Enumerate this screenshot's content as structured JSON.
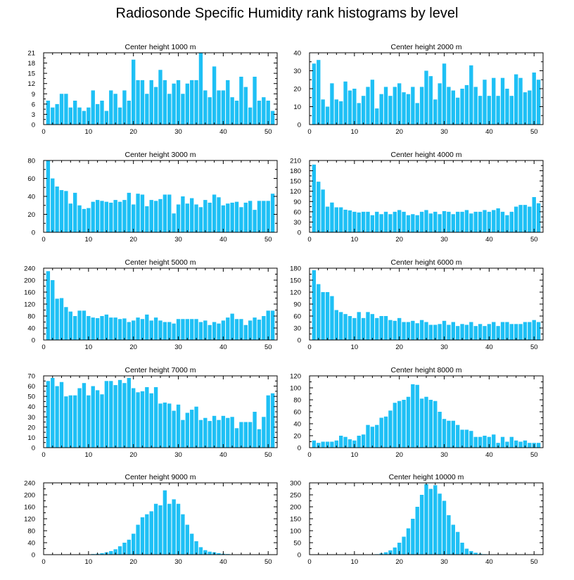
{
  "title": "Radiosonde Specific Humidity rank histograms by level",
  "colors": {
    "bar": "#1ec0f5",
    "axis": "#000000",
    "background": "#ffffff"
  },
  "chart_data": [
    {
      "type": "bar",
      "title": "Center height 1000 m",
      "xlim": [
        0,
        52
      ],
      "xticks": [
        0,
        10,
        20,
        30,
        40,
        50
      ],
      "ylim": [
        0,
        21
      ],
      "yticks": [
        0,
        3,
        6,
        9,
        12,
        15,
        18,
        21
      ],
      "values": [
        7,
        5,
        6,
        9,
        9,
        5,
        7,
        5,
        4,
        5,
        10,
        6,
        7,
        4,
        10,
        9,
        5,
        10,
        7,
        19,
        13,
        13,
        9,
        13,
        11,
        16,
        13,
        9,
        12,
        13,
        9,
        12,
        13,
        13,
        21,
        10,
        8,
        17,
        10,
        10,
        13,
        8,
        7,
        14,
        11,
        5,
        14,
        7,
        8,
        7,
        4
      ]
    },
    {
      "type": "bar",
      "title": "Center height 2000 m",
      "xlim": [
        0,
        52
      ],
      "xticks": [
        0,
        10,
        20,
        30,
        40,
        50
      ],
      "ylim": [
        0,
        40
      ],
      "yticks": [
        0,
        10,
        20,
        30,
        40
      ],
      "values": [
        34,
        36,
        14,
        10,
        23,
        14,
        13,
        24,
        19,
        20,
        12,
        16,
        21,
        25,
        9,
        17,
        21,
        16,
        21,
        23,
        18,
        17,
        21,
        12,
        21,
        30,
        27,
        14,
        23,
        34,
        21,
        19,
        15,
        20,
        22,
        33,
        21,
        16,
        25,
        16,
        26,
        16,
        26,
        20,
        16,
        28,
        26,
        18,
        19,
        29,
        25
      ]
    },
    {
      "type": "bar",
      "title": "Center height 3000 m",
      "xlim": [
        0,
        52
      ],
      "xticks": [
        0,
        10,
        20,
        30,
        40,
        50
      ],
      "ylim": [
        0,
        80
      ],
      "yticks": [
        0,
        20,
        40,
        60,
        80
      ],
      "values": [
        80,
        60,
        51,
        47,
        46,
        32,
        44,
        30,
        26,
        27,
        34,
        36,
        35,
        34,
        33,
        36,
        34,
        36,
        44,
        31,
        43,
        42,
        29,
        36,
        35,
        37,
        42,
        42,
        21,
        31,
        40,
        32,
        38,
        31,
        28,
        36,
        33,
        42,
        39,
        30,
        32,
        33,
        34,
        28,
        33,
        35,
        25,
        35,
        35,
        35,
        43
      ]
    },
    {
      "type": "bar",
      "title": "Center height 4000 m",
      "xlim": [
        0,
        52
      ],
      "xticks": [
        0,
        10,
        20,
        30,
        40,
        50
      ],
      "ylim": [
        0,
        210
      ],
      "yticks": [
        0,
        30,
        60,
        90,
        120,
        150,
        180,
        210
      ],
      "values": [
        198,
        148,
        125,
        75,
        87,
        73,
        73,
        66,
        64,
        60,
        58,
        60,
        60,
        50,
        60,
        53,
        60,
        53,
        60,
        65,
        60,
        50,
        53,
        50,
        60,
        65,
        55,
        60,
        53,
        62,
        60,
        53,
        60,
        60,
        65,
        55,
        60,
        60,
        65,
        60,
        65,
        70,
        60,
        50,
        60,
        75,
        80,
        80,
        75,
        103,
        85
      ]
    },
    {
      "type": "bar",
      "title": "Center height 5000 m",
      "xlim": [
        0,
        52
      ],
      "xticks": [
        0,
        10,
        20,
        30,
        40,
        50
      ],
      "ylim": [
        0,
        240
      ],
      "yticks": [
        0,
        40,
        80,
        120,
        160,
        200,
        240
      ],
      "values": [
        230,
        200,
        138,
        140,
        110,
        95,
        80,
        98,
        98,
        80,
        75,
        73,
        80,
        85,
        75,
        75,
        70,
        72,
        60,
        65,
        75,
        70,
        85,
        65,
        75,
        65,
        60,
        60,
        55,
        70,
        70,
        70,
        70,
        70,
        60,
        65,
        50,
        60,
        55,
        65,
        75,
        88,
        70,
        70,
        50,
        65,
        75,
        68,
        80,
        98,
        98
      ]
    },
    {
      "type": "bar",
      "title": "Center height 6000 m",
      "xlim": [
        0,
        52
      ],
      "xticks": [
        0,
        10,
        20,
        30,
        40,
        50
      ],
      "ylim": [
        0,
        180
      ],
      "yticks": [
        0,
        30,
        60,
        90,
        120,
        150,
        180
      ],
      "values": [
        175,
        140,
        120,
        120,
        110,
        75,
        70,
        65,
        60,
        55,
        70,
        55,
        70,
        65,
        55,
        60,
        60,
        50,
        48,
        55,
        45,
        45,
        48,
        42,
        50,
        45,
        38,
        38,
        40,
        48,
        38,
        45,
        35,
        40,
        38,
        45,
        35,
        40,
        35,
        40,
        45,
        35,
        45,
        45,
        40,
        40,
        40,
        45,
        45,
        50,
        45
      ]
    },
    {
      "type": "bar",
      "title": "Center height 7000 m",
      "xlim": [
        0,
        52
      ],
      "xticks": [
        0,
        10,
        20,
        30,
        40,
        50
      ],
      "ylim": [
        0,
        70
      ],
      "yticks": [
        0,
        10,
        20,
        30,
        40,
        50,
        60,
        70
      ],
      "values": [
        65,
        68,
        60,
        64,
        50,
        51,
        51,
        58,
        63,
        51,
        60,
        56,
        52,
        65,
        65,
        61,
        66,
        63,
        68,
        58,
        54,
        55,
        59,
        53,
        59,
        43,
        44,
        43,
        36,
        42,
        27,
        34,
        37,
        40,
        27,
        29,
        26,
        31,
        27,
        31,
        29,
        30,
        19,
        25,
        25,
        25,
        35,
        18,
        30,
        51,
        53
      ]
    },
    {
      "type": "bar",
      "title": "Center height 8000 m",
      "xlim": [
        0,
        52
      ],
      "xticks": [
        0,
        10,
        20,
        30,
        40,
        50
      ],
      "ylim": [
        0,
        120
      ],
      "yticks": [
        0,
        20,
        40,
        60,
        80,
        100,
        120
      ],
      "values": [
        12,
        8,
        10,
        10,
        10,
        12,
        20,
        18,
        14,
        12,
        20,
        22,
        38,
        35,
        38,
        50,
        52,
        62,
        75,
        78,
        80,
        85,
        106,
        105,
        82,
        85,
        80,
        78,
        60,
        48,
        45,
        45,
        38,
        30,
        30,
        28,
        18,
        18,
        20,
        18,
        22,
        8,
        18,
        10,
        18,
        12,
        10,
        12,
        8,
        8,
        8
      ]
    },
    {
      "type": "bar",
      "title": "Center height 9000 m",
      "xlim": [
        0,
        52
      ],
      "xticks": [
        0,
        10,
        20,
        30,
        40,
        50
      ],
      "ylim": [
        0,
        240
      ],
      "yticks": [
        0,
        40,
        80,
        120,
        160,
        200,
        240
      ],
      "values": [
        0,
        0,
        0,
        0,
        0,
        0,
        0,
        0,
        0,
        1,
        2,
        3,
        5,
        8,
        12,
        18,
        28,
        40,
        50,
        70,
        100,
        125,
        135,
        145,
        170,
        165,
        215,
        170,
        185,
        170,
        135,
        100,
        70,
        45,
        25,
        15,
        10,
        8,
        5,
        3,
        2,
        1,
        0,
        0,
        0,
        0,
        0,
        0,
        0,
        0,
        0
      ]
    },
    {
      "type": "bar",
      "title": "Center height 10000 m",
      "xlim": [
        0,
        52
      ],
      "xticks": [
        0,
        10,
        20,
        30,
        40,
        50
      ],
      "ylim": [
        0,
        300
      ],
      "yticks": [
        0,
        50,
        100,
        150,
        200,
        250,
        300
      ],
      "values": [
        0,
        0,
        0,
        0,
        0,
        0,
        0,
        0,
        0,
        0,
        0,
        0,
        0,
        0,
        2,
        5,
        10,
        18,
        30,
        50,
        75,
        110,
        150,
        200,
        250,
        295,
        275,
        290,
        255,
        225,
        165,
        125,
        95,
        50,
        25,
        15,
        8,
        4,
        2,
        1,
        0,
        0,
        0,
        0,
        0,
        0,
        0,
        0,
        0,
        0,
        0
      ]
    }
  ]
}
